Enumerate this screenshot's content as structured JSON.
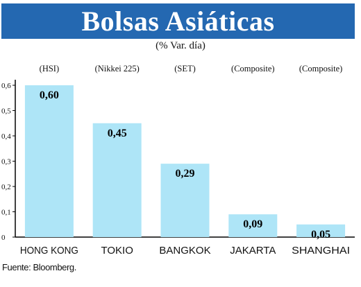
{
  "title": "Bolsas Asiáticas",
  "subtitle": "(% Var. día)",
  "source": "Fuente: Bloomberg.",
  "colors": {
    "banner": "#2468b1",
    "bar": "#aee5f7",
    "axis": "#000000"
  },
  "chart_data": {
    "type": "bar",
    "title": "Bolsas Asiáticas",
    "subtitle": "(% Var. día)",
    "categories": [
      "HONG KONG",
      "TOKIO",
      "BANGKOK",
      "JAKARTA",
      "SHANGHAI"
    ],
    "index_names": [
      "(HSI)",
      "(Nikkei 225)",
      "(SET)",
      "(Composite)",
      "(Composite)"
    ],
    "values": [
      0.6,
      0.45,
      0.29,
      0.09,
      0.05
    ],
    "value_labels": [
      "0,60",
      "0,45",
      "0,29",
      "0,09",
      "0,05"
    ],
    "y_ticks": [
      "0",
      "0,1",
      "0,2",
      "0,3",
      "0,4",
      "0,5",
      "0,6"
    ],
    "ylim": [
      0,
      0.6
    ],
    "grid": false,
    "legend": "none"
  }
}
